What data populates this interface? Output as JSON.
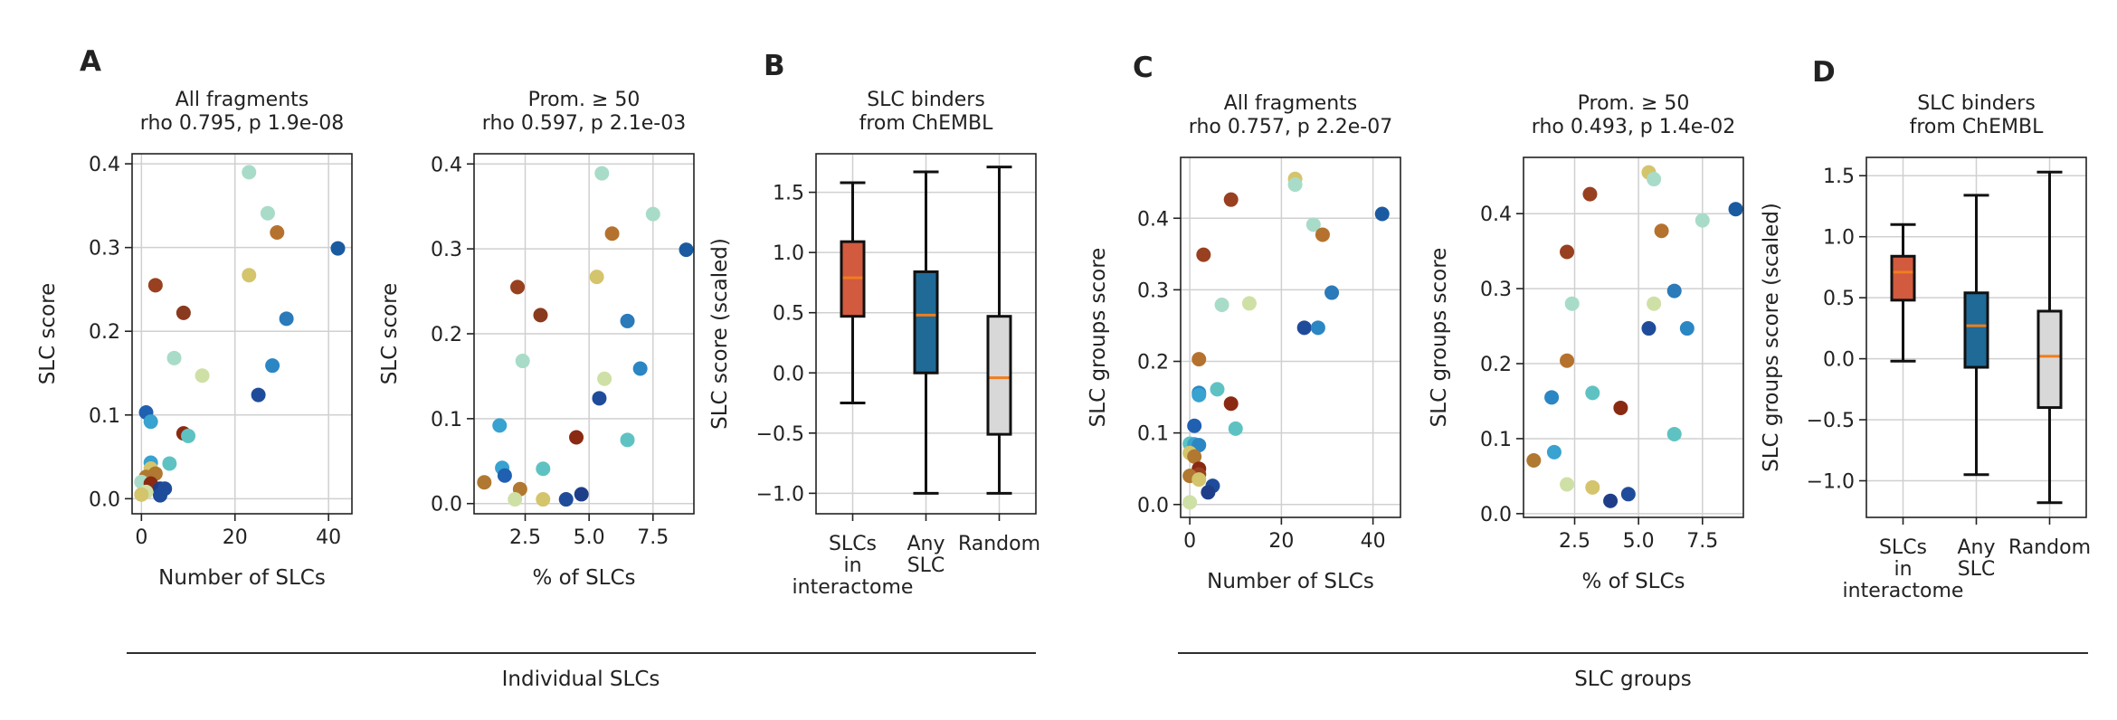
{
  "figure": {
    "group_labels": [
      "Individual SLCs",
      "SLC groups"
    ]
  },
  "chart_data": [
    {
      "id": "A1",
      "panel_letter": "A",
      "type": "scatter",
      "title": [
        "All fragments",
        "rho 0.795, p 1.9e-08"
      ],
      "xlabel": "Number of SLCs",
      "ylabel": "SLC score",
      "xlim": [
        -2,
        45
      ],
      "ylim": [
        -0.018,
        0.412
      ],
      "xticks": [
        0,
        20,
        40
      ],
      "xtick_labels": [
        "0",
        "20",
        "40"
      ],
      "yticks": [
        0,
        0.1,
        0.2,
        0.3,
        0.4
      ],
      "ytick_labels": [
        "0.0",
        "0.1",
        "0.2",
        "0.3",
        "0.4"
      ],
      "grid": true,
      "points": [
        {
          "x": 23,
          "y": 0.39,
          "color": "#a8dcc8"
        },
        {
          "x": 27,
          "y": 0.341,
          "color": "#a8dcc8"
        },
        {
          "x": 29,
          "y": 0.318,
          "color": "#b5722e"
        },
        {
          "x": 42,
          "y": 0.299,
          "color": "#1a5aa0"
        },
        {
          "x": 23,
          "y": 0.267,
          "color": "#d4c46c"
        },
        {
          "x": 3,
          "y": 0.255,
          "color": "#98401f"
        },
        {
          "x": 9,
          "y": 0.222,
          "color": "#8a3a1e"
        },
        {
          "x": 31,
          "y": 0.215,
          "color": "#2b7ab9"
        },
        {
          "x": 7,
          "y": 0.168,
          "color": "#a8dcc8"
        },
        {
          "x": 13,
          "y": 0.147,
          "color": "#cfe0a6"
        },
        {
          "x": 28,
          "y": 0.159,
          "color": "#2b86c4"
        },
        {
          "x": 25,
          "y": 0.124,
          "color": "#1f4c9a"
        },
        {
          "x": 1,
          "y": 0.103,
          "color": "#2060b0"
        },
        {
          "x": 2,
          "y": 0.092,
          "color": "#38a2d0"
        },
        {
          "x": 9,
          "y": 0.078,
          "color": "#8a2a12"
        },
        {
          "x": 10,
          "y": 0.075,
          "color": "#5fc2c2"
        },
        {
          "x": 2,
          "y": 0.043,
          "color": "#38a2d0"
        },
        {
          "x": 6,
          "y": 0.042,
          "color": "#5fc2c2"
        },
        {
          "x": 2,
          "y": 0.036,
          "color": "#d4c46c"
        },
        {
          "x": 3,
          "y": 0.03,
          "color": "#b07830"
        },
        {
          "x": 1,
          "y": 0.026,
          "color": "#b07830"
        },
        {
          "x": 0,
          "y": 0.02,
          "color": "#a8dcc8"
        },
        {
          "x": 2,
          "y": 0.018,
          "color": "#8a2a12"
        },
        {
          "x": 4,
          "y": 0.012,
          "color": "#1f3e8a"
        },
        {
          "x": 5,
          "y": 0.012,
          "color": "#1f4c9a"
        },
        {
          "x": 1,
          "y": 0.008,
          "color": "#cfe0a6"
        },
        {
          "x": 0,
          "y": 0.005,
          "color": "#d4c46c"
        },
        {
          "x": 4,
          "y": 0.004,
          "color": "#1f4c9a"
        }
      ]
    },
    {
      "id": "A2",
      "panel_letter": "",
      "type": "scatter",
      "title": [
        "Prom. ≥ 50",
        "rho 0.597, p 2.1e-03"
      ],
      "xlabel": "% of SLCs",
      "ylabel": "SLC score",
      "xlim": [
        0.5,
        9.1
      ],
      "ylim": [
        -0.012,
        0.412
      ],
      "xticks": [
        2.5,
        5.0,
        7.5
      ],
      "xtick_labels": [
        "2.5",
        "5.0",
        "7.5"
      ],
      "yticks": [
        0,
        0.1,
        0.2,
        0.3,
        0.4
      ],
      "ytick_labels": [
        "0.0",
        "0.1",
        "0.2",
        "0.3",
        "0.4"
      ],
      "grid": true,
      "points": [
        {
          "x": 5.5,
          "y": 0.389,
          "color": "#a8dcc8"
        },
        {
          "x": 7.5,
          "y": 0.341,
          "color": "#a8dcc8"
        },
        {
          "x": 5.9,
          "y": 0.318,
          "color": "#b5722e"
        },
        {
          "x": 8.8,
          "y": 0.299,
          "color": "#1a5aa0"
        },
        {
          "x": 5.3,
          "y": 0.267,
          "color": "#d4c46c"
        },
        {
          "x": 2.2,
          "y": 0.255,
          "color": "#98401f"
        },
        {
          "x": 3.1,
          "y": 0.222,
          "color": "#8a3a1e"
        },
        {
          "x": 6.5,
          "y": 0.215,
          "color": "#2b7ab9"
        },
        {
          "x": 2.4,
          "y": 0.168,
          "color": "#a8dcc8"
        },
        {
          "x": 7.0,
          "y": 0.159,
          "color": "#2b86c4"
        },
        {
          "x": 5.6,
          "y": 0.147,
          "color": "#cfe0a6"
        },
        {
          "x": 5.4,
          "y": 0.124,
          "color": "#1f4c9a"
        },
        {
          "x": 1.5,
          "y": 0.092,
          "color": "#38a2d0"
        },
        {
          "x": 4.5,
          "y": 0.078,
          "color": "#8a2a12"
        },
        {
          "x": 6.5,
          "y": 0.075,
          "color": "#5fc2c2"
        },
        {
          "x": 1.6,
          "y": 0.042,
          "color": "#38a2d0"
        },
        {
          "x": 3.2,
          "y": 0.041,
          "color": "#5fc2c2"
        },
        {
          "x": 1.7,
          "y": 0.033,
          "color": "#2060b0"
        },
        {
          "x": 0.9,
          "y": 0.025,
          "color": "#b07830"
        },
        {
          "x": 2.3,
          "y": 0.017,
          "color": "#b07830"
        },
        {
          "x": 4.7,
          "y": 0.011,
          "color": "#1f3e8a"
        },
        {
          "x": 4.1,
          "y": 0.005,
          "color": "#1f4c9a"
        },
        {
          "x": 3.2,
          "y": 0.005,
          "color": "#d4c46c"
        },
        {
          "x": 2.1,
          "y": 0.005,
          "color": "#cfe0a6"
        }
      ]
    },
    {
      "id": "B",
      "panel_letter": "B",
      "type": "box",
      "title": [
        "SLC binders",
        "from ChEMBL"
      ],
      "xlabel": "",
      "ylabel": "SLC score (scaled)",
      "ylim": [
        -1.17,
        1.82
      ],
      "yticks": [
        -1.0,
        -0.5,
        0.0,
        0.5,
        1.0,
        1.5
      ],
      "ytick_labels": [
        "−1.0",
        "−0.5",
        "0.0",
        "0.5",
        "1.0",
        "1.5"
      ],
      "grid": true,
      "categories": [
        [
          "SLCs",
          "in",
          "interactome"
        ],
        [
          "Any",
          "SLC"
        ],
        [
          "Random"
        ]
      ],
      "boxes": [
        {
          "whisker_low": -0.25,
          "q1": 0.47,
          "median": 0.79,
          "q3": 1.09,
          "whisker_high": 1.58,
          "color": "#d25a3e"
        },
        {
          "whisker_low": -1.0,
          "q1": 0.0,
          "median": 0.48,
          "q3": 0.84,
          "whisker_high": 1.67,
          "color": "#1f6a96"
        },
        {
          "whisker_low": -1.0,
          "q1": -0.51,
          "median": -0.04,
          "q3": 0.47,
          "whisker_high": 1.71,
          "color": "#d8d8d8"
        }
      ]
    },
    {
      "id": "C1",
      "panel_letter": "C",
      "type": "scatter",
      "title": [
        "All fragments",
        "rho 0.757, p 2.2e-07"
      ],
      "xlabel": "Number of SLCs",
      "ylabel": "SLC groups score",
      "xlim": [
        -2,
        46
      ],
      "ylim": [
        -0.018,
        0.485
      ],
      "xticks": [
        0,
        20,
        40
      ],
      "xtick_labels": [
        "0",
        "20",
        "40"
      ],
      "yticks": [
        0,
        0.1,
        0.2,
        0.3,
        0.4
      ],
      "ytick_labels": [
        "0.0",
        "0.1",
        "0.2",
        "0.3",
        "0.4"
      ],
      "grid": true,
      "points": [
        {
          "x": 23,
          "y": 0.455,
          "color": "#d4c46c"
        },
        {
          "x": 23,
          "y": 0.447,
          "color": "#a8dcc8"
        },
        {
          "x": 9,
          "y": 0.426,
          "color": "#98401f"
        },
        {
          "x": 42,
          "y": 0.406,
          "color": "#1a5aa0"
        },
        {
          "x": 27,
          "y": 0.391,
          "color": "#a8dcc8"
        },
        {
          "x": 29,
          "y": 0.377,
          "color": "#b5722e"
        },
        {
          "x": 3,
          "y": 0.349,
          "color": "#98401f"
        },
        {
          "x": 31,
          "y": 0.296,
          "color": "#2b7ab9"
        },
        {
          "x": 13,
          "y": 0.281,
          "color": "#cfe0a6"
        },
        {
          "x": 7,
          "y": 0.279,
          "color": "#a8dcc8"
        },
        {
          "x": 25,
          "y": 0.247,
          "color": "#1f4c9a"
        },
        {
          "x": 28,
          "y": 0.247,
          "color": "#2b86c4"
        },
        {
          "x": 2,
          "y": 0.203,
          "color": "#b5722e"
        },
        {
          "x": 6,
          "y": 0.161,
          "color": "#5fc2c2"
        },
        {
          "x": 2,
          "y": 0.156,
          "color": "#2b86c4"
        },
        {
          "x": 2,
          "y": 0.153,
          "color": "#38a2d0"
        },
        {
          "x": 9,
          "y": 0.141,
          "color": "#8a2a12"
        },
        {
          "x": 1,
          "y": 0.11,
          "color": "#2060b0"
        },
        {
          "x": 10,
          "y": 0.106,
          "color": "#5fc2c2"
        },
        {
          "x": 0,
          "y": 0.085,
          "color": "#5fc2c2"
        },
        {
          "x": 1,
          "y": 0.084,
          "color": "#38a2d0"
        },
        {
          "x": 2,
          "y": 0.083,
          "color": "#2b86c4"
        },
        {
          "x": 0,
          "y": 0.072,
          "color": "#d4c46c"
        },
        {
          "x": 1,
          "y": 0.067,
          "color": "#b07830"
        },
        {
          "x": 2,
          "y": 0.05,
          "color": "#8a2a12"
        },
        {
          "x": 2,
          "y": 0.042,
          "color": "#98401f"
        },
        {
          "x": 0,
          "y": 0.04,
          "color": "#b07830"
        },
        {
          "x": 2,
          "y": 0.035,
          "color": "#d4c46c"
        },
        {
          "x": 5,
          "y": 0.026,
          "color": "#1f4c9a"
        },
        {
          "x": 4,
          "y": 0.017,
          "color": "#1f3e8a"
        },
        {
          "x": 0,
          "y": 0.003,
          "color": "#cfe0a6"
        }
      ]
    },
    {
      "id": "C2",
      "panel_letter": "",
      "type": "scatter",
      "title": [
        "Prom. ≥ 50",
        "rho 0.493, p 1.4e-02"
      ],
      "xlabel": "% of SLCs",
      "ylabel": "SLC groups score",
      "xlim": [
        0.5,
        9.1
      ],
      "ylim": [
        -0.005,
        0.475
      ],
      "xticks": [
        2.5,
        5.0,
        7.5
      ],
      "xtick_labels": [
        "2.5",
        "5.0",
        "7.5"
      ],
      "yticks": [
        0,
        0.1,
        0.2,
        0.3,
        0.4
      ],
      "ytick_labels": [
        "0.0",
        "0.1",
        "0.2",
        "0.3",
        "0.4"
      ],
      "grid": true,
      "points": [
        {
          "x": 5.4,
          "y": 0.455,
          "color": "#d4c46c"
        },
        {
          "x": 5.6,
          "y": 0.446,
          "color": "#a8dcc8"
        },
        {
          "x": 3.1,
          "y": 0.426,
          "color": "#98401f"
        },
        {
          "x": 8.8,
          "y": 0.406,
          "color": "#1a5aa0"
        },
        {
          "x": 7.5,
          "y": 0.391,
          "color": "#a8dcc8"
        },
        {
          "x": 5.9,
          "y": 0.377,
          "color": "#b5722e"
        },
        {
          "x": 2.2,
          "y": 0.349,
          "color": "#98401f"
        },
        {
          "x": 6.4,
          "y": 0.297,
          "color": "#2b7ab9"
        },
        {
          "x": 2.4,
          "y": 0.28,
          "color": "#a8dcc8"
        },
        {
          "x": 5.6,
          "y": 0.28,
          "color": "#cfe0a6"
        },
        {
          "x": 5.4,
          "y": 0.247,
          "color": "#1f4c9a"
        },
        {
          "x": 6.9,
          "y": 0.247,
          "color": "#2b86c4"
        },
        {
          "x": 2.2,
          "y": 0.204,
          "color": "#b5722e"
        },
        {
          "x": 3.2,
          "y": 0.161,
          "color": "#5fc2c2"
        },
        {
          "x": 1.6,
          "y": 0.155,
          "color": "#2b86c4"
        },
        {
          "x": 4.3,
          "y": 0.141,
          "color": "#8a2a12"
        },
        {
          "x": 6.4,
          "y": 0.106,
          "color": "#5fc2c2"
        },
        {
          "x": 1.7,
          "y": 0.082,
          "color": "#38a2d0"
        },
        {
          "x": 0.9,
          "y": 0.071,
          "color": "#b07830"
        },
        {
          "x": 2.2,
          "y": 0.039,
          "color": "#cfe0a6"
        },
        {
          "x": 3.2,
          "y": 0.035,
          "color": "#d4c46c"
        },
        {
          "x": 4.6,
          "y": 0.026,
          "color": "#1f4c9a"
        },
        {
          "x": 3.9,
          "y": 0.017,
          "color": "#1f3e8a"
        }
      ]
    },
    {
      "id": "D",
      "panel_letter": "D",
      "type": "box",
      "title": [
        "SLC binders",
        "from ChEMBL"
      ],
      "xlabel": "",
      "ylabel": "SLC groups score (scaled)",
      "ylim": [
        -1.3,
        1.65
      ],
      "yticks": [
        -1.0,
        -0.5,
        0.0,
        0.5,
        1.0,
        1.5
      ],
      "ytick_labels": [
        "−1.0",
        "−0.5",
        "0.0",
        "0.5",
        "1.0",
        "1.5"
      ],
      "grid": true,
      "categories": [
        [
          "SLCs",
          "in",
          "interactome"
        ],
        [
          "Any",
          "SLC"
        ],
        [
          "Random"
        ]
      ],
      "boxes": [
        {
          "whisker_low": -0.02,
          "q1": 0.48,
          "median": 0.71,
          "q3": 0.84,
          "whisker_high": 1.1,
          "color": "#d25a3e"
        },
        {
          "whisker_low": -0.95,
          "q1": -0.07,
          "median": 0.27,
          "q3": 0.54,
          "whisker_high": 1.34,
          "color": "#1f6a96"
        },
        {
          "whisker_low": -1.18,
          "q1": -0.4,
          "median": 0.02,
          "q3": 0.39,
          "whisker_high": 1.53,
          "color": "#d8d8d8"
        }
      ]
    }
  ]
}
